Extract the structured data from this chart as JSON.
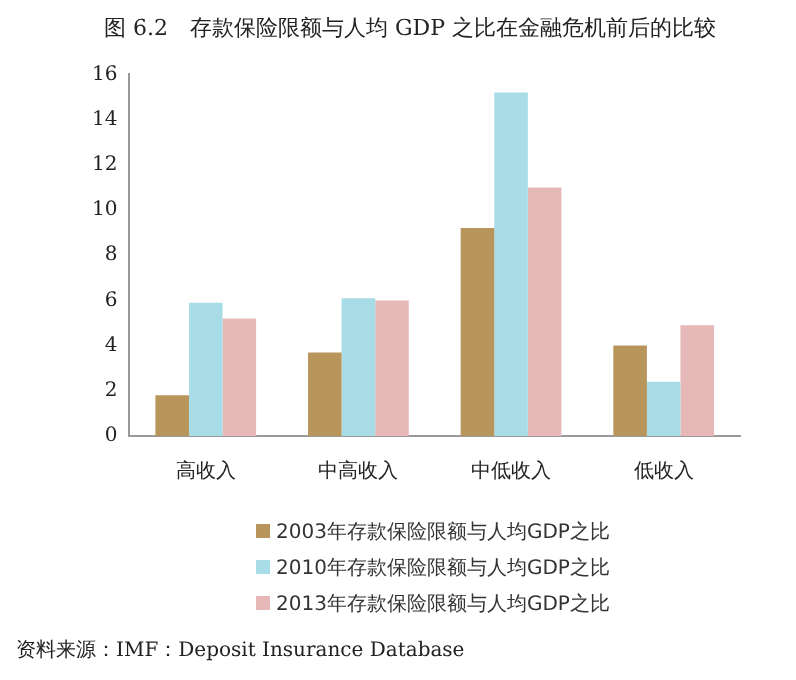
{
  "chart_data": {
    "type": "bar",
    "title": "图 6.2　存款保险限额与人均 GDP 之比在金融危机前后的比较",
    "categories": [
      "高收入",
      "中高收入",
      "中低收入",
      "低收入"
    ],
    "series": [
      {
        "name": "2003年存款保险限额与人均GDP之比",
        "color": "#b8955a",
        "values": [
          1.8,
          3.7,
          9.2,
          4.0
        ]
      },
      {
        "name": "2010年存款保险限额与人均GDP之比",
        "color": "#a8dde8",
        "values": [
          5.9,
          6.1,
          15.2,
          2.4
        ]
      },
      {
        "name": "2013年存款保险限额与人均GDP之比",
        "color": "#e6b8b8",
        "values": [
          5.2,
          6.0,
          11.0,
          4.9
        ]
      }
    ],
    "ylim": [
      0,
      16
    ],
    "yticks": [
      0,
      2,
      4,
      6,
      8,
      10,
      12,
      14,
      16
    ],
    "grid": false,
    "legend": "bottom",
    "annotations": [
      "资料来源：IMF：Deposit Insurance Database"
    ]
  }
}
